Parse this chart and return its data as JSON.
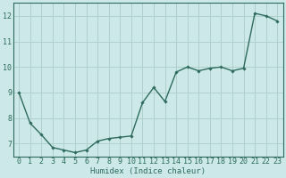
{
  "x": [
    0,
    1,
    2,
    3,
    4,
    5,
    6,
    7,
    8,
    9,
    10,
    11,
    12,
    13,
    14,
    15,
    16,
    17,
    18,
    19,
    20,
    21,
    22,
    23
  ],
  "y": [
    9.0,
    7.8,
    7.35,
    6.85,
    6.75,
    6.65,
    6.75,
    7.1,
    7.2,
    7.25,
    7.3,
    8.6,
    9.2,
    8.65,
    9.8,
    10.0,
    9.85,
    9.95,
    10.0,
    9.85,
    9.95,
    12.1,
    12.0,
    11.8
  ],
  "line_color": "#2e6b5e",
  "marker": "D",
  "markersize": 1.8,
  "linewidth": 1.0,
  "bg_color": "#cce8e8",
  "grid_major_color": "#b0d0d0",
  "xlabel": "Humidex (Indice chaleur)",
  "xlabel_fontsize": 6.5,
  "tick_fontsize": 6.0,
  "ylim": [
    6.5,
    12.5
  ],
  "yticks": [
    7,
    8,
    9,
    10,
    11,
    12
  ],
  "xticks": [
    0,
    1,
    2,
    3,
    4,
    5,
    6,
    7,
    8,
    9,
    10,
    11,
    12,
    13,
    14,
    15,
    16,
    17,
    18,
    19,
    20,
    21,
    22,
    23
  ],
  "xlim": [
    -0.5,
    23.5
  ]
}
